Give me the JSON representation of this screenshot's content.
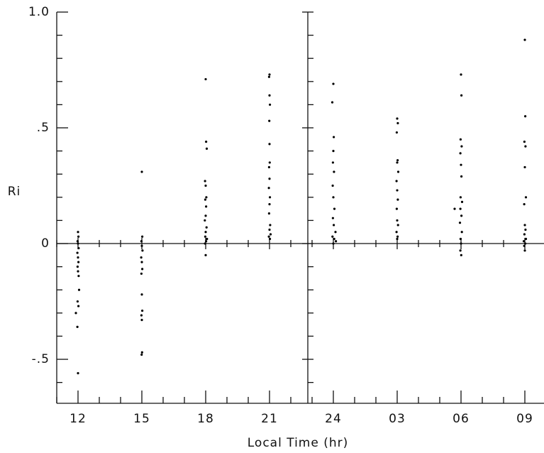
{
  "chart_data": {
    "type": "scatter",
    "ylabel": "Ri",
    "xlabel": "Local Time (hr)",
    "color": "#000000",
    "xlim": [
      11,
      33.9
    ],
    "ylim": [
      -0.69,
      1.0
    ],
    "xticks": [
      12,
      15,
      18,
      21,
      24,
      {
        "value": 27,
        "label": "03"
      },
      {
        "value": 30,
        "label": "06"
      },
      {
        "value": 33,
        "label": "09"
      }
    ],
    "xminorticks": [
      11,
      13,
      14,
      16,
      17,
      19,
      20,
      22,
      23,
      25,
      26,
      28,
      29,
      31,
      32
    ],
    "yticks": [
      {
        "value": -0.5,
        "label": "-.5"
      },
      0,
      {
        "value": 0.5,
        "label": ".5"
      },
      {
        "value": 1,
        "label": "1.0"
      }
    ],
    "yminorticks": [
      -0.6,
      -0.4,
      -0.3,
      -0.2,
      -0.1,
      0.1,
      0.2,
      0.3,
      0.4,
      0.6,
      0.7,
      0.8,
      0.9
    ],
    "divider": 22.8,
    "x": [
      12,
      12.02,
      11.98,
      12,
      12.03,
      11.97,
      12,
      12.02,
      11.98,
      12,
      12.03,
      12.05,
      11.98,
      12.02,
      11.97,
      12,
      11.9,
      15,
      15.02,
      14.98,
      15,
      15.03,
      14.97,
      15,
      15.02,
      14.98,
      15,
      15.02,
      14.98,
      15,
      15.01,
      14.99,
      18,
      18.02,
      18.05,
      17.97,
      18,
      18.03,
      17.98,
      18.02,
      18,
      17.96,
      18.04,
      18,
      17.98,
      18.06,
      18.02,
      17.97,
      18,
      21,
      20.98,
      21,
      21.02,
      20.99,
      21,
      21.01,
      20.98,
      21,
      20.97,
      21.02,
      21,
      20.98,
      21.03,
      21,
      21.05,
      20.97,
      21.02,
      24,
      23.95,
      24.02,
      24,
      23.98,
      24.03,
      23.97,
      24,
      24.05,
      23.98,
      24.02,
      24.1,
      23.96,
      24.04,
      24.12,
      24,
      27,
      27.03,
      26.98,
      27.02,
      27,
      27.05,
      26.97,
      27,
      27.03,
      26.98,
      27,
      27.04,
      26.97,
      27.02,
      27,
      30,
      30.02,
      29.98,
      30.03,
      29.97,
      30,
      30.02,
      29.98,
      30.05,
      29.97,
      30.02,
      29.95,
      30.04,
      29.98,
      30,
      29.97,
      30.01,
      29.7,
      33,
      33.02,
      32.98,
      33.03,
      33,
      33.05,
      32.97,
      33,
      33.03,
      32.98,
      33.05,
      32.95,
      33.02,
      32.97,
      33
    ],
    "y": [
      0.05,
      0.03,
      0.01,
      0,
      -0.02,
      -0.04,
      -0.06,
      -0.08,
      -0.1,
      -0.12,
      -0.14,
      -0.2,
      -0.25,
      -0.27,
      -0.36,
      -0.56,
      -0.3,
      0.31,
      0.03,
      0.01,
      -0.01,
      -0.03,
      -0.06,
      -0.08,
      -0.11,
      -0.13,
      -0.22,
      -0.29,
      -0.31,
      -0.33,
      -0.47,
      -0.48,
      0.71,
      0.44,
      0.41,
      0.27,
      0.25,
      0.2,
      0.19,
      0.16,
      0.12,
      0.1,
      0.07,
      0.05,
      0.03,
      0.02,
      0.01,
      0,
      -0.05,
      0.73,
      0.72,
      0.64,
      0.6,
      0.53,
      0.43,
      0.35,
      0.33,
      0.28,
      0.24,
      0.2,
      0.17,
      0.13,
      0.08,
      0.06,
      0.04,
      0.03,
      0.02,
      0.69,
      0.61,
      0.46,
      0.4,
      0.35,
      0.31,
      0.25,
      0.2,
      0.15,
      0.11,
      0.08,
      0.05,
      0.03,
      0.02,
      0.01,
      0,
      0.54,
      0.52,
      0.48,
      0.36,
      0.35,
      0.31,
      0.27,
      0.23,
      0.19,
      0.15,
      0.1,
      0.08,
      0.05,
      0.03,
      0.02,
      0.73,
      0.64,
      0.45,
      0.42,
      0.39,
      0.34,
      0.29,
      0.2,
      0.18,
      0.15,
      0.12,
      0.09,
      0.05,
      0.02,
      0,
      -0.03,
      -0.05,
      0.15,
      0.88,
      0.55,
      0.44,
      0.42,
      0.33,
      0.2,
      0.17,
      0.08,
      0.06,
      0.04,
      0.02,
      0.01,
      0,
      -0.01,
      -0.03
    ]
  }
}
